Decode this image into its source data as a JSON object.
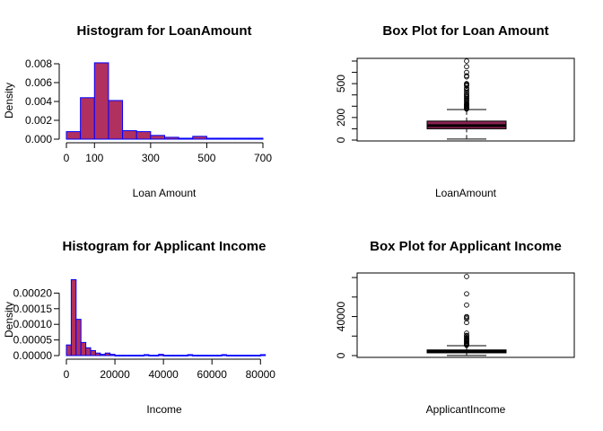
{
  "colors": {
    "bar_fill": "#b03060",
    "bar_border": "#0000ff",
    "box_fill": "#8b2252",
    "ink": "#000000"
  },
  "chart_data": [
    {
      "type": "histogram",
      "title": "Histogram for LoanAmount",
      "xlabel": "Loan Amount",
      "ylabel": "Density",
      "xticks": [
        0,
        100,
        300,
        500,
        700
      ],
      "yticks": [
        "0.000",
        "0.002",
        "0.004",
        "0.006",
        "0.008"
      ],
      "xlim": [
        0,
        700
      ],
      "ylim": [
        0,
        0.008
      ],
      "bin_width": 50,
      "bin_starts": [
        0,
        50,
        100,
        150,
        200,
        250,
        300,
        350,
        400,
        450,
        500,
        550,
        600,
        650
      ],
      "values": [
        0.0008,
        0.0044,
        0.0081,
        0.0041,
        0.0009,
        0.0008,
        0.0004,
        0.0002,
        0.0001,
        0.0003,
        0.0001,
        0.0001,
        0.0001,
        0.0001
      ]
    },
    {
      "type": "boxplot",
      "title": "Box Plot for Loan Amount",
      "xlabel": "LoanAmount",
      "yticks": [
        0,
        200,
        500
      ],
      "ylim": [
        0,
        700
      ],
      "stats": {
        "min": 9,
        "q1": 100,
        "median": 128,
        "q3": 168,
        "max": 270
      },
      "outliers": [
        275,
        280,
        286,
        292,
        298,
        304,
        310,
        315,
        320,
        330,
        340,
        350,
        360,
        370,
        380,
        390,
        400,
        405,
        420,
        436,
        450,
        460,
        480,
        490,
        495,
        500,
        560,
        570,
        600,
        650,
        700
      ]
    },
    {
      "type": "histogram",
      "title": "Histogram for Applicant Income",
      "xlabel": "Income",
      "ylabel": "Density",
      "xticks": [
        0,
        20000,
        40000,
        60000,
        80000
      ],
      "yticks": [
        "0.00000",
        "0.00005",
        "0.00010",
        "0.00015",
        "0.00020"
      ],
      "xlim": [
        0,
        81000
      ],
      "ylim": [
        0,
        0.00025
      ],
      "bin_width": 2000,
      "bin_starts": [
        0,
        2000,
        4000,
        6000,
        8000,
        10000,
        12000,
        14000,
        16000,
        18000,
        20000,
        22000,
        24000,
        26000,
        28000,
        30000,
        32000,
        34000,
        36000,
        38000,
        40000,
        42000,
        44000,
        46000,
        48000,
        50000,
        52000,
        54000,
        56000,
        58000,
        60000,
        62000,
        64000,
        66000,
        68000,
        70000,
        72000,
        74000,
        76000,
        78000,
        80000
      ],
      "values": [
        3.4e-05,
        0.000243,
        0.000116,
        4.2e-05,
        2.5e-05,
        1.6e-05,
        8e-06,
        4e-06,
        8e-06,
        4e-06,
        1e-06,
        1e-06,
        1e-06,
        1e-06,
        1e-06,
        1e-06,
        3e-06,
        1e-06,
        1e-06,
        4e-06,
        1e-06,
        1e-06,
        1e-06,
        1e-06,
        1e-06,
        3e-06,
        1e-06,
        1e-06,
        1e-06,
        1e-06,
        1e-06,
        1e-06,
        3e-06,
        1e-06,
        1e-06,
        1e-06,
        1e-06,
        1e-06,
        1e-06,
        1e-06,
        3e-06
      ]
    },
    {
      "type": "boxplot",
      "title": "Box Plot for Applicant Income",
      "xlabel": "ApplicantIncome",
      "yticks": [
        0,
        40000
      ],
      "ylim": [
        0,
        81000
      ],
      "stats": {
        "min": 150,
        "q1": 2878,
        "median": 3812,
        "q3": 5795,
        "max": 10171
      },
      "outliers": [
        10500,
        11000,
        11500,
        12000,
        12800,
        13500,
        14500,
        15000,
        16000,
        16700,
        17500,
        18100,
        19700,
        20200,
        20700,
        23000,
        33800,
        37700,
        39100,
        39999,
        51800,
        63300,
        81000
      ]
    }
  ]
}
